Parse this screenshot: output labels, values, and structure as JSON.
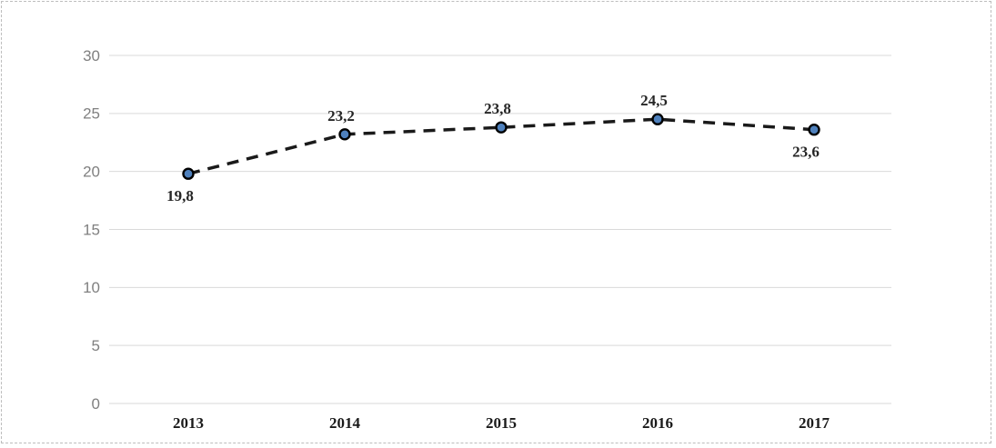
{
  "chart_data": {
    "type": "line",
    "title": "",
    "xlabel": "",
    "ylabel": "",
    "categories": [
      "2013",
      "2014",
      "2015",
      "2016",
      "2017"
    ],
    "series": [
      {
        "name": "values",
        "values": [
          19.8,
          23.2,
          23.8,
          24.5,
          23.6
        ],
        "value_labels": [
          "19,8",
          "23,2",
          "23,8",
          "24,5",
          "23,6"
        ],
        "label_positions": [
          "below",
          "above",
          "above",
          "above",
          "below"
        ]
      }
    ],
    "ylim": [
      0,
      30
    ],
    "y_ticks": [
      0,
      5,
      10,
      15,
      20,
      25,
      30
    ],
    "grid": true,
    "legend": false,
    "line_style": "dashed",
    "marker": "circle",
    "colors": {
      "line": "#1a1a1a",
      "marker_fill": "#4f81bd",
      "marker_stroke": "#000000",
      "gridline": "#d9d9d9",
      "y_tick_label": "#808080",
      "x_tick_label": "#1a1a1a",
      "data_label": "#262626",
      "frame_border": "#bdbdbd",
      "background": "#ffffff"
    }
  }
}
